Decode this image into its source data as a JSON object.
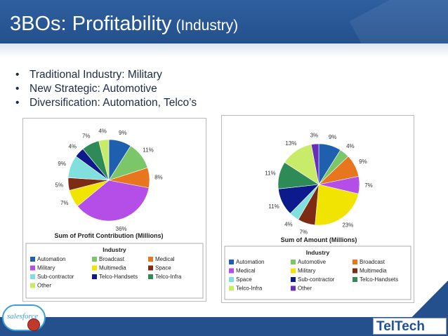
{
  "slide": {
    "title": "3BOs: Profitability",
    "subtitle": "(Industry)",
    "bullets": [
      "Traditional Industry: Military",
      "New Strategic: Automotive",
      "Diversification: Automation, Telco’s"
    ]
  },
  "colors": {
    "title_bar": "#24508d",
    "accent_light": "#dce6f1"
  },
  "logos": {
    "left": "salesforce",
    "right": "TelTech"
  },
  "chart_data": [
    {
      "type": "pie",
      "title": "Sum of Profit Contribution (Millions)",
      "legend_title": "Industry",
      "legend_placement": "bottom",
      "categories": [
        "Automation",
        "Broadcast",
        "Medical",
        "Military",
        "Multimedia",
        "Space",
        "Sub-contractor",
        "Telco-Handsets",
        "Telco-Infra",
        "Other"
      ],
      "legend_colors": [
        "#1f5fb0",
        "#7cc66a",
        "#e8761e",
        "#b44ee6",
        "#f1e400",
        "#7d2b12",
        "#7fe0dd",
        "#0c1a8c",
        "#2e8b57",
        "#c8ec6a"
      ],
      "slices": [
        {
          "label": "Automation",
          "value": 9,
          "label_text": "9%",
          "color": "#1f5fb0"
        },
        {
          "label": "Broadcast",
          "value": 11,
          "label_text": "11%",
          "color": "#7cc66a"
        },
        {
          "label": "Medical",
          "value": 8,
          "label_text": "8%",
          "color": "#e8761e"
        },
        {
          "label": "Military",
          "value": 36,
          "label_text": "36%",
          "color": "#b44ee6"
        },
        {
          "label": "Multimedia",
          "value": 7,
          "label_text": "7%",
          "color": "#f1e400"
        },
        {
          "label": "Space",
          "value": 5,
          "label_text": "5%",
          "color": "#7d2b12"
        },
        {
          "label": "Sub-contractor",
          "value": 9,
          "label_text": "9%",
          "color": "#7fe0dd"
        },
        {
          "label": "Telco-Handsets",
          "value": 4,
          "label_text": "4%",
          "color": "#0c1a8c"
        },
        {
          "label": "Telco-Infra",
          "value": 7,
          "label_text": "7%",
          "color": "#2e8b57"
        },
        {
          "label": "Other",
          "value": 4,
          "label_text": "4%",
          "color": "#c8ec6a"
        }
      ]
    },
    {
      "type": "pie",
      "title": "Sum of Amount (Millions)",
      "legend_title": "Industry",
      "legend_placement": "bottom",
      "categories": [
        "Automation",
        "Automotive",
        "Broadcast",
        "Medical",
        "Military",
        "Multimedia",
        "Space",
        "Sub-contractor",
        "Telco-Handsets",
        "Telco-Infra",
        "Other"
      ],
      "legend_colors": [
        "#1f5fb0",
        "#7cc66a",
        "#e8761e",
        "#b44ee6",
        "#f1e400",
        "#7d2b12",
        "#7fe0dd",
        "#0c1a8c",
        "#2e8b57",
        "#c8ec6a",
        "#6a2fb8"
      ],
      "slices": [
        {
          "label": "Automation",
          "value": 9,
          "label_text": "9%",
          "color": "#1f5fb0"
        },
        {
          "label": "Automotive",
          "value": 4,
          "label_text": "4%",
          "color": "#7cc66a"
        },
        {
          "label": "Broadcast",
          "value": 9,
          "label_text": "9%",
          "color": "#e8761e"
        },
        {
          "label": "Medical",
          "value": 7,
          "label_text": "7%",
          "color": "#b44ee6"
        },
        {
          "label": "Military",
          "value": 23,
          "label_text": "23%",
          "color": "#f1e400"
        },
        {
          "label": "Multimedia",
          "value": 7,
          "label_text": "7%",
          "color": "#7d2b12"
        },
        {
          "label": "Space",
          "value": 4,
          "label_text": "4%",
          "color": "#7fe0dd"
        },
        {
          "label": "Sub-contractor",
          "value": 11,
          "label_text": "11%",
          "color": "#0c1a8c"
        },
        {
          "label": "Telco-Handsets",
          "value": 11,
          "label_text": "11%",
          "color": "#2e8b57"
        },
        {
          "label": "Telco-Infra",
          "value": 13,
          "label_text": "13%",
          "color": "#c8ec6a"
        },
        {
          "label": "Other",
          "value": 3,
          "label_text": "3%",
          "color": "#6a2fb8"
        }
      ]
    }
  ]
}
